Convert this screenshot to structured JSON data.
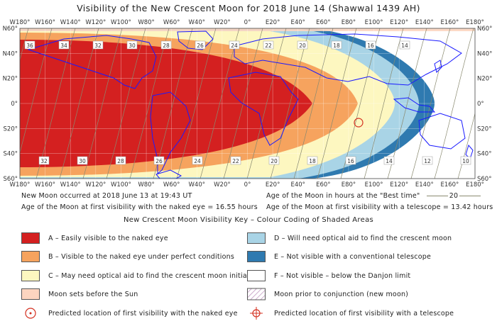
{
  "title": "Visibility of the New Crescent Moon for 2018 June 14 (Shawwal 1439 AH)",
  "map": {
    "top_labels": [
      "W180°",
      "W160°",
      "W140°",
      "W120°",
      "W100°",
      "W80°",
      "W60°",
      "W40°",
      "W20°",
      "0°",
      "E20°",
      "E40°",
      "E60°",
      "E80°",
      "E100°",
      "E120°",
      "E140°",
      "E160°",
      "E180°"
    ],
    "bottom_labels": [
      "W180°",
      "W160°",
      "W140°",
      "W120°",
      "W100°",
      "W80°",
      "W60°",
      "W40°",
      "W20°",
      "0°",
      "E20°",
      "E40°",
      "E60°",
      "E80°",
      "E100°",
      "E120°",
      "E140°",
      "E160°",
      "E180°"
    ],
    "left_labels": [
      "N60°",
      "N40°",
      "N20°",
      "0°",
      "S20°",
      "S40°",
      "S60°"
    ],
    "right_labels": [
      "N60°",
      "N40°",
      "N20°",
      "0°",
      "S20°",
      "S40°",
      "S60°"
    ],
    "age_contours_top": [
      "36",
      "34",
      "32",
      "30",
      "28",
      "26",
      "24",
      "22",
      "20",
      "18",
      "16",
      "14"
    ],
    "age_contours_bottom": [
      "32",
      "30",
      "28",
      "26",
      "24",
      "22",
      "20",
      "18",
      "16",
      "14",
      "12",
      "10"
    ],
    "colors": {
      "A": "#d42020",
      "B": "#f6a35e",
      "C": "#fdf7c0",
      "D": "#a9d4e6",
      "E": "#2f7ab0",
      "F": "#ffffff",
      "sets": "#fcd5c0",
      "coast": "#1a1aff",
      "border": "#c49a80",
      "contour": "#8a8a70"
    }
  },
  "info": {
    "new_moon": "New Moon occurred at 2018 June 13 at 19:43 UT",
    "naked_eye": "Age of the Moon at first visibility with the naked eye = 16.55 hours",
    "best_time": "Age of the Moon in hours at the \"Best time\"",
    "best_time_sample": "20",
    "telescope": "Age of the Moon at first visibility with a telescope = 13.42 hours"
  },
  "key": {
    "title": "New Crescent Moon Visibility Key – Colour Coding of Shaded Areas",
    "items": [
      {
        "id": "A",
        "label": "A – Easily visible to the naked eye"
      },
      {
        "id": "B",
        "label": "B – Visible to the naked eye under perfect conditions"
      },
      {
        "id": "C",
        "label": "C – May need optical aid to find the crescent moon initially"
      },
      {
        "id": "D",
        "label": "D – Will need optical aid to find the crescent moon"
      },
      {
        "id": "E",
        "label": "E – Not visible with a conventional telescope"
      },
      {
        "id": "F",
        "label": "F – Not visible – below the Danjon limit"
      },
      {
        "id": "sets",
        "label": "Moon sets before the Sun"
      },
      {
        "id": "prior",
        "label": "Moon prior to conjunction (new moon)"
      },
      {
        "id": "naked",
        "label": "Predicted location of first visibility with the naked eye"
      },
      {
        "id": "scope",
        "label": "Predicted location of first visibility with a telescope"
      }
    ]
  }
}
